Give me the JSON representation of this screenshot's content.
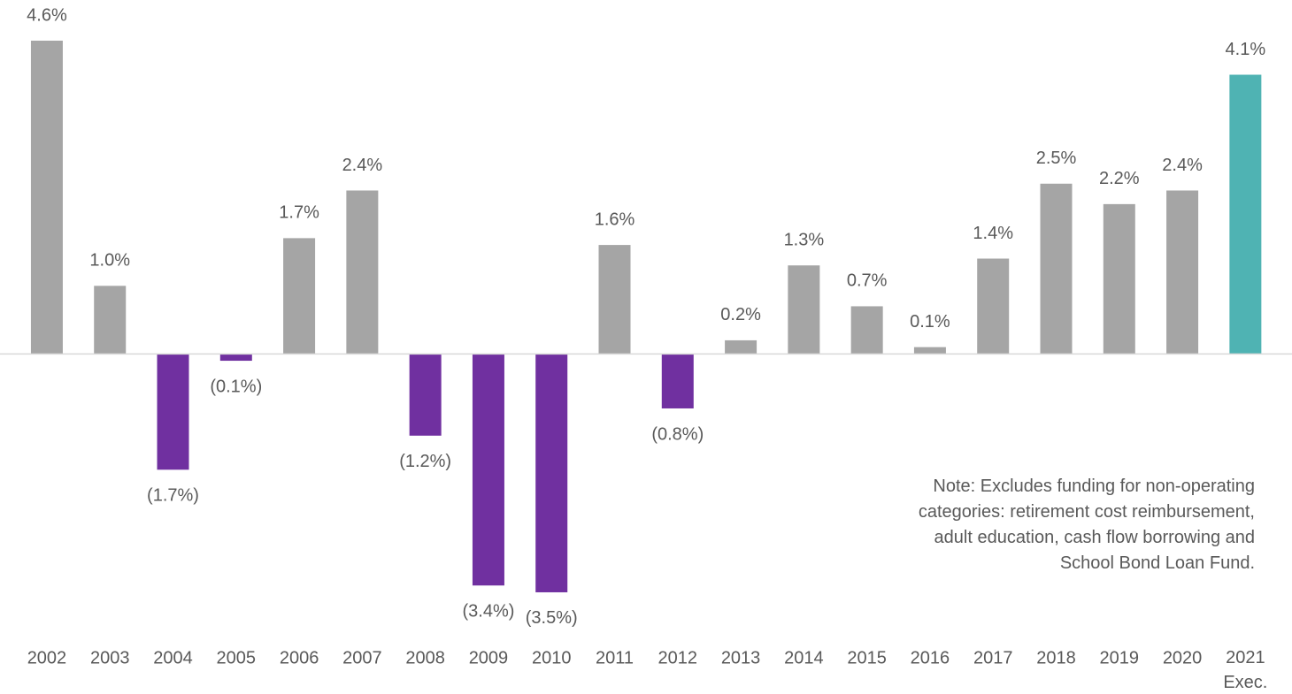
{
  "chart_data": {
    "type": "bar",
    "categories": [
      "2002",
      "2003",
      "2004",
      "2005",
      "2006",
      "2007",
      "2008",
      "2009",
      "2010",
      "2011",
      "2012",
      "2013",
      "2014",
      "2015",
      "2016",
      "2017",
      "2018",
      "2019",
      "2020",
      "2021\nExec."
    ],
    "values": [
      4.6,
      1.0,
      -1.7,
      -0.1,
      1.7,
      2.4,
      -1.2,
      -3.4,
      -3.5,
      1.6,
      -0.8,
      0.2,
      1.3,
      0.7,
      0.1,
      1.4,
      2.5,
      2.2,
      2.4,
      4.1
    ],
    "value_labels": [
      "4.6%",
      "1.0%",
      "(1.7%)",
      "(0.1%)",
      "1.7%",
      "2.4%",
      "(1.2%)",
      "(3.4%)",
      "(3.5%)",
      "1.6%",
      "(0.8%)",
      "0.2%",
      "1.3%",
      "0.7%",
      "0.1%",
      "1.4%",
      "2.5%",
      "2.2%",
      "2.4%",
      "4.1%"
    ],
    "colors": [
      "#a5a5a5",
      "#a5a5a5",
      "#7030a0",
      "#7030a0",
      "#a5a5a5",
      "#a5a5a5",
      "#7030a0",
      "#7030a0",
      "#7030a0",
      "#a5a5a5",
      "#7030a0",
      "#a5a5a5",
      "#a5a5a5",
      "#a5a5a5",
      "#a5a5a5",
      "#a5a5a5",
      "#a5a5a5",
      "#a5a5a5",
      "#a5a5a5",
      "#4fb3b3"
    ],
    "ylim": [
      -4.5,
      4.6
    ],
    "annotation": [
      "Note: Excludes funding for non-operating",
      "categories: retirement cost reimbursement,",
      "adult education, cash flow borrowing and",
      "School Bond Loan Fund."
    ]
  }
}
